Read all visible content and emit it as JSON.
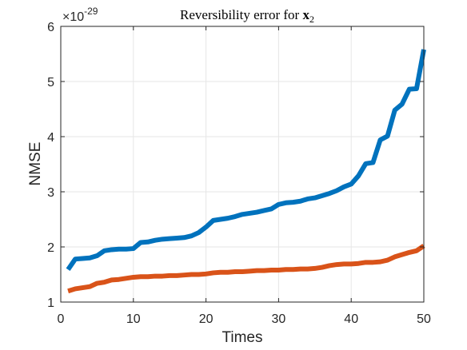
{
  "chart_data": {
    "type": "line",
    "title": "Reversibility error for x₂",
    "title_parts": {
      "prefix": "Reversibility error for ",
      "var": "x",
      "sub": "2"
    },
    "xlabel": "Times",
    "ylabel": "NMSE",
    "y_exponent": {
      "base": "×10",
      "power": "-29"
    },
    "xlim": [
      0,
      50
    ],
    "ylim": [
      1,
      6
    ],
    "xticks": [
      0,
      10,
      20,
      30,
      40,
      50
    ],
    "yticks": [
      1,
      2,
      3,
      4,
      5,
      6
    ],
    "grid": true,
    "x": [
      1,
      2,
      3,
      4,
      5,
      6,
      7,
      8,
      9,
      10,
      11,
      12,
      13,
      14,
      15,
      16,
      17,
      18,
      19,
      20,
      21,
      22,
      23,
      24,
      25,
      26,
      27,
      28,
      29,
      30,
      31,
      32,
      33,
      34,
      35,
      36,
      37,
      38,
      39,
      40,
      41,
      42,
      43,
      44,
      45,
      46,
      47,
      48,
      49,
      50
    ],
    "series": [
      {
        "color": "#0072BD",
        "values": [
          1.59,
          1.78,
          1.79,
          1.8,
          1.84,
          1.93,
          1.95,
          1.96,
          1.96,
          1.97,
          2.08,
          2.09,
          2.12,
          2.14,
          2.15,
          2.16,
          2.17,
          2.2,
          2.26,
          2.36,
          2.48,
          2.5,
          2.52,
          2.55,
          2.59,
          2.61,
          2.63,
          2.66,
          2.69,
          2.77,
          2.8,
          2.81,
          2.83,
          2.87,
          2.89,
          2.93,
          2.97,
          3.02,
          3.09,
          3.14,
          3.29,
          3.51,
          3.53,
          3.94,
          4.01,
          4.48,
          4.59,
          4.86,
          4.87,
          5.58
        ]
      },
      {
        "color": "#D95319",
        "values": [
          1.2,
          1.24,
          1.26,
          1.28,
          1.34,
          1.36,
          1.4,
          1.41,
          1.43,
          1.45,
          1.46,
          1.46,
          1.47,
          1.47,
          1.48,
          1.48,
          1.49,
          1.5,
          1.5,
          1.51,
          1.53,
          1.54,
          1.54,
          1.55,
          1.55,
          1.56,
          1.57,
          1.57,
          1.58,
          1.58,
          1.59,
          1.59,
          1.6,
          1.6,
          1.61,
          1.63,
          1.66,
          1.68,
          1.69,
          1.69,
          1.7,
          1.72,
          1.72,
          1.73,
          1.76,
          1.82,
          1.86,
          1.9,
          1.93,
          2.02
        ]
      }
    ]
  },
  "colors": {
    "axis": "#262626",
    "grid": "#e6e6e6",
    "background": "#ffffff"
  }
}
